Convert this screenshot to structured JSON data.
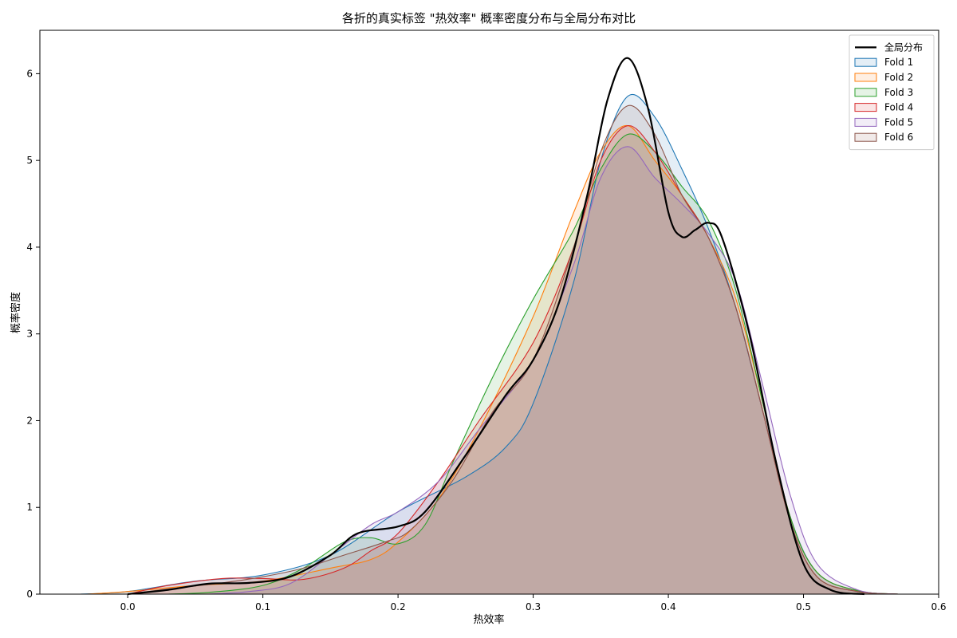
{
  "chart_data": {
    "type": "area",
    "title": "各折的真实标签 \"热效率\" 概率密度分布与全局分布对比",
    "xlabel": "热效率",
    "ylabel": "概率密度",
    "xlim": [
      -0.065,
      0.6
    ],
    "ylim": [
      0,
      6.5
    ],
    "xticks": [
      0.0,
      0.1,
      0.2,
      0.3,
      0.4,
      0.5,
      0.6
    ],
    "xtick_labels": [
      "0.0",
      "0.1",
      "0.2",
      "0.3",
      "0.4",
      "0.5",
      "0.6"
    ],
    "yticks": [
      0,
      1,
      2,
      3,
      4,
      5,
      6
    ],
    "ytick_labels": [
      "0",
      "1",
      "2",
      "3",
      "4",
      "5",
      "6"
    ],
    "grid": false,
    "legend_position": "top-right",
    "series": [
      {
        "name": "全局分布",
        "color": "#000000",
        "filled": false,
        "line_width": 2.2,
        "points": [
          [
            0.0,
            0.0
          ],
          [
            0.03,
            0.05
          ],
          [
            0.06,
            0.12
          ],
          [
            0.09,
            0.13
          ],
          [
            0.12,
            0.2
          ],
          [
            0.15,
            0.45
          ],
          [
            0.17,
            0.7
          ],
          [
            0.2,
            0.78
          ],
          [
            0.22,
            0.95
          ],
          [
            0.25,
            1.6
          ],
          [
            0.28,
            2.3
          ],
          [
            0.3,
            2.7
          ],
          [
            0.32,
            3.4
          ],
          [
            0.34,
            4.6
          ],
          [
            0.355,
            5.7
          ],
          [
            0.37,
            6.18
          ],
          [
            0.385,
            5.6
          ],
          [
            0.4,
            4.4
          ],
          [
            0.41,
            4.12
          ],
          [
            0.42,
            4.2
          ],
          [
            0.43,
            4.28
          ],
          [
            0.44,
            4.1
          ],
          [
            0.46,
            3.0
          ],
          [
            0.48,
            1.5
          ],
          [
            0.5,
            0.35
          ],
          [
            0.52,
            0.05
          ],
          [
            0.545,
            0.0
          ]
        ]
      },
      {
        "name": "Fold 1",
        "color": "#1f77b4",
        "filled": true,
        "line_width": 1.1,
        "points": [
          [
            -0.035,
            0.0
          ],
          [
            0.0,
            0.03
          ],
          [
            0.05,
            0.15
          ],
          [
            0.1,
            0.22
          ],
          [
            0.15,
            0.45
          ],
          [
            0.2,
            0.95
          ],
          [
            0.25,
            1.35
          ],
          [
            0.28,
            1.7
          ],
          [
            0.3,
            2.2
          ],
          [
            0.33,
            3.6
          ],
          [
            0.35,
            5.0
          ],
          [
            0.37,
            5.74
          ],
          [
            0.39,
            5.5
          ],
          [
            0.41,
            4.9
          ],
          [
            0.43,
            4.2
          ],
          [
            0.45,
            3.3
          ],
          [
            0.47,
            2.1
          ],
          [
            0.49,
            0.9
          ],
          [
            0.51,
            0.25
          ],
          [
            0.54,
            0.04
          ],
          [
            0.57,
            0.0
          ]
        ]
      },
      {
        "name": "Fold 2",
        "color": "#ff7f0e",
        "filled": true,
        "line_width": 1.1,
        "points": [
          [
            -0.03,
            0.0
          ],
          [
            0.0,
            0.03
          ],
          [
            0.05,
            0.1
          ],
          [
            0.1,
            0.15
          ],
          [
            0.15,
            0.3
          ],
          [
            0.18,
            0.4
          ],
          [
            0.2,
            0.6
          ],
          [
            0.23,
            1.1
          ],
          [
            0.26,
            1.9
          ],
          [
            0.3,
            3.2
          ],
          [
            0.33,
            4.4
          ],
          [
            0.35,
            5.1
          ],
          [
            0.37,
            5.4
          ],
          [
            0.39,
            5.0
          ],
          [
            0.41,
            4.6
          ],
          [
            0.43,
            4.1
          ],
          [
            0.45,
            3.4
          ],
          [
            0.47,
            2.2
          ],
          [
            0.49,
            0.9
          ],
          [
            0.51,
            0.25
          ],
          [
            0.54,
            0.04
          ],
          [
            0.57,
            0.0
          ]
        ]
      },
      {
        "name": "Fold 3",
        "color": "#2ca02c",
        "filled": true,
        "line_width": 1.1,
        "points": [
          [
            0.03,
            0.0
          ],
          [
            0.06,
            0.02
          ],
          [
            0.1,
            0.1
          ],
          [
            0.13,
            0.3
          ],
          [
            0.16,
            0.6
          ],
          [
            0.18,
            0.65
          ],
          [
            0.2,
            0.58
          ],
          [
            0.22,
            0.8
          ],
          [
            0.24,
            1.5
          ],
          [
            0.27,
            2.5
          ],
          [
            0.3,
            3.4
          ],
          [
            0.33,
            4.2
          ],
          [
            0.35,
            4.9
          ],
          [
            0.37,
            5.3
          ],
          [
            0.39,
            5.1
          ],
          [
            0.41,
            4.7
          ],
          [
            0.43,
            4.3
          ],
          [
            0.45,
            3.5
          ],
          [
            0.47,
            2.2
          ],
          [
            0.49,
            0.9
          ],
          [
            0.51,
            0.25
          ],
          [
            0.54,
            0.04
          ],
          [
            0.57,
            0.0
          ]
        ]
      },
      {
        "name": "Fold 4",
        "color": "#d62728",
        "filled": true,
        "line_width": 1.1,
        "points": [
          [
            0.0,
            0.0
          ],
          [
            0.03,
            0.1
          ],
          [
            0.07,
            0.18
          ],
          [
            0.1,
            0.18
          ],
          [
            0.13,
            0.17
          ],
          [
            0.16,
            0.3
          ],
          [
            0.18,
            0.5
          ],
          [
            0.2,
            0.7
          ],
          [
            0.23,
            1.3
          ],
          [
            0.26,
            2.0
          ],
          [
            0.3,
            2.9
          ],
          [
            0.33,
            4.0
          ],
          [
            0.35,
            5.0
          ],
          [
            0.37,
            5.4
          ],
          [
            0.39,
            5.1
          ],
          [
            0.41,
            4.6
          ],
          [
            0.43,
            4.1
          ],
          [
            0.45,
            3.3
          ],
          [
            0.47,
            2.1
          ],
          [
            0.49,
            0.85
          ],
          [
            0.51,
            0.2
          ],
          [
            0.54,
            0.03
          ],
          [
            0.57,
            0.0
          ]
        ]
      },
      {
        "name": "Fold 5",
        "color": "#9467bd",
        "filled": true,
        "line_width": 1.1,
        "points": [
          [
            0.06,
            0.0
          ],
          [
            0.09,
            0.03
          ],
          [
            0.12,
            0.12
          ],
          [
            0.15,
            0.45
          ],
          [
            0.18,
            0.8
          ],
          [
            0.2,
            0.95
          ],
          [
            0.23,
            1.3
          ],
          [
            0.26,
            1.9
          ],
          [
            0.3,
            2.7
          ],
          [
            0.33,
            3.8
          ],
          [
            0.35,
            4.8
          ],
          [
            0.37,
            5.16
          ],
          [
            0.39,
            4.8
          ],
          [
            0.41,
            4.5
          ],
          [
            0.43,
            4.15
          ],
          [
            0.45,
            3.6
          ],
          [
            0.47,
            2.4
          ],
          [
            0.49,
            1.15
          ],
          [
            0.51,
            0.35
          ],
          [
            0.54,
            0.05
          ],
          [
            0.57,
            0.0
          ]
        ]
      },
      {
        "name": "Fold 6",
        "color": "#8c564b",
        "filled": true,
        "line_width": 1.1,
        "points": [
          [
            0.0,
            0.0
          ],
          [
            0.03,
            0.06
          ],
          [
            0.07,
            0.13
          ],
          [
            0.1,
            0.2
          ],
          [
            0.13,
            0.3
          ],
          [
            0.16,
            0.45
          ],
          [
            0.19,
            0.6
          ],
          [
            0.21,
            0.75
          ],
          [
            0.24,
            1.3
          ],
          [
            0.27,
            2.1
          ],
          [
            0.3,
            2.7
          ],
          [
            0.33,
            4.0
          ],
          [
            0.35,
            5.1
          ],
          [
            0.37,
            5.63
          ],
          [
            0.39,
            5.3
          ],
          [
            0.41,
            4.6
          ],
          [
            0.43,
            4.1
          ],
          [
            0.45,
            3.3
          ],
          [
            0.47,
            2.1
          ],
          [
            0.49,
            0.85
          ],
          [
            0.51,
            0.2
          ],
          [
            0.54,
            0.03
          ],
          [
            0.57,
            0.0
          ]
        ]
      }
    ]
  }
}
